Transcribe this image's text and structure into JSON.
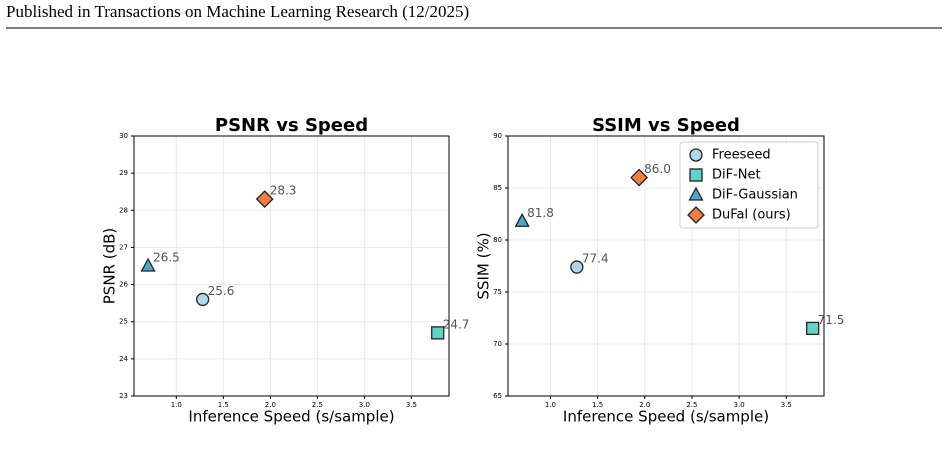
{
  "header": {
    "text": "Published in Transactions on Machine Learning Research (12/2025)"
  },
  "chart_data": [
    {
      "type": "scatter",
      "title": "PSNR vs Speed",
      "x_label": "Inference Speed (s/sample)",
      "y_label": "PSNR (dB)",
      "xlim": [
        0.55,
        3.9
      ],
      "ylim": [
        23,
        30
      ],
      "grid": true,
      "xticks": [
        {
          "value": 1,
          "label": "1.0"
        },
        1.5,
        {
          "value": 2,
          "label": "2.0"
        },
        2.5,
        {
          "value": 3,
          "label": "3.0"
        },
        3.5
      ],
      "yticks": [
        23,
        24,
        25,
        26,
        27,
        28,
        29,
        30
      ],
      "series": [
        {
          "name": "Freeseed",
          "color": "#add8e6",
          "marker": "circle",
          "x": [
            1.28
          ],
          "values": [
            25.6
          ]
        },
        {
          "name": "DiF-Net",
          "color": "#5fd3c8",
          "marker": "square",
          "x": [
            3.78
          ],
          "values": [
            24.7
          ]
        },
        {
          "name": "DiF-Gaussian",
          "color": "#4aa8c8",
          "marker": "triangle",
          "x": [
            0.7
          ],
          "values": [
            26.5
          ]
        },
        {
          "name": "DuFal (ours)",
          "color": "#f08040",
          "marker": "diamond",
          "x": [
            1.94
          ],
          "values": [
            28.3
          ]
        }
      ]
    },
    {
      "type": "scatter",
      "title": "SSIM vs Speed",
      "x_label": "Inference Speed (s/sample)",
      "y_label": "SSIM (%)",
      "xlim": [
        0.55,
        3.9
      ],
      "ylim": [
        65,
        90
      ],
      "grid": true,
      "legend": "upper right",
      "xticks": [
        {
          "value": 1,
          "label": "1.0"
        },
        1.5,
        {
          "value": 2,
          "label": "2.0"
        },
        2.5,
        {
          "value": 3,
          "label": "3.0"
        },
        3.5
      ],
      "yticks": [
        65,
        70,
        75,
        80,
        85,
        90
      ],
      "series": [
        {
          "name": "Freeseed",
          "color": "#add8e6",
          "marker": "circle",
          "x": [
            1.28
          ],
          "values": [
            77.4
          ]
        },
        {
          "name": "DiF-Net",
          "color": "#5fd3c8",
          "marker": "square",
          "x": [
            3.78
          ],
          "values": [
            71.5
          ]
        },
        {
          "name": "DiF-Gaussian",
          "color": "#4aa8c8",
          "marker": "triangle",
          "x": [
            0.7
          ],
          "values": [
            81.8
          ]
        },
        {
          "name": "DuFal (ours)",
          "color": "#f08040",
          "marker": "diamond",
          "x": [
            1.94
          ],
          "values": [
            86.0
          ],
          "value_labels": [
            "86.0"
          ]
        }
      ]
    }
  ]
}
